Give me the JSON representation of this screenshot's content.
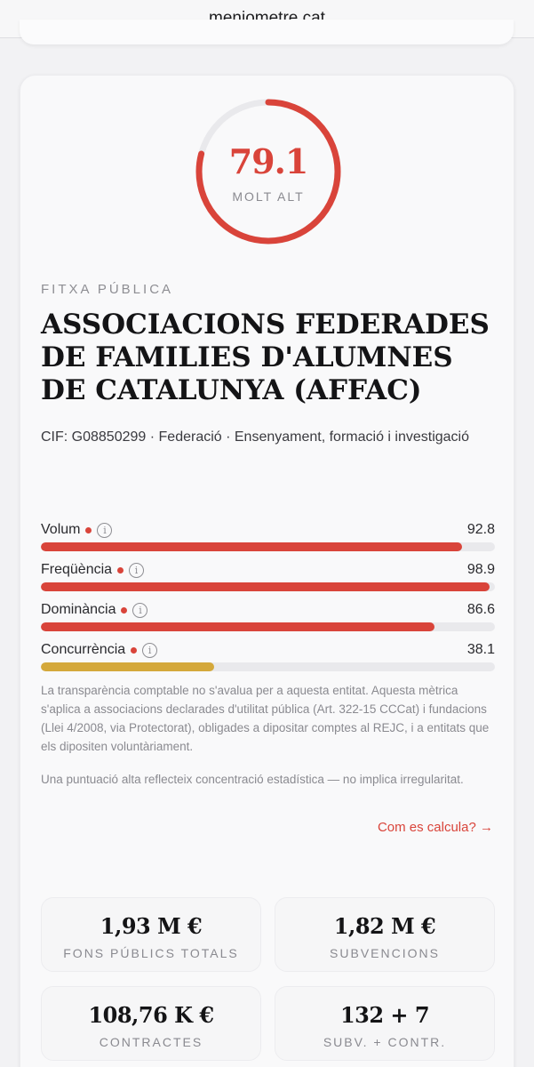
{
  "browser": {
    "url": "menjometre.cat"
  },
  "score": {
    "value": "79.1",
    "level": "MOLT ALT",
    "fraction": 0.791,
    "color": "#d9443a"
  },
  "entity": {
    "eyebrow": "FITXA PÚBLICA",
    "name": "ASSOCIACIONS FEDERADES DE FAMILIES D'ALUMNES DE CATALUNYA (AFFAC)",
    "meta": "CIF: G08850299 · Federació · Ensenyament, formació i investigació"
  },
  "metrics": [
    {
      "label": "Volum",
      "value": "92.8",
      "fraction": 0.928,
      "color": "#d9443a",
      "info_icon": "info-icon"
    },
    {
      "label": "Freqüència",
      "value": "98.9",
      "fraction": 0.989,
      "color": "#d9443a",
      "info_icon": "info-icon"
    },
    {
      "label": "Dominància",
      "value": "86.6",
      "fraction": 0.866,
      "color": "#d9443a",
      "info_icon": "info-icon"
    },
    {
      "label": "Concurrència",
      "value": "38.1",
      "fraction": 0.381,
      "color": "#d4a83a",
      "info_icon": "info-icon"
    }
  ],
  "notes": {
    "transparency": "La transparència comptable no s'avalua per a aquesta entitat. Aquesta mètrica s'aplica a associacions declarades d'utilitat pública (Art. 322-15 CCCat) i fundacions (Llei 4/2008, via Protectorat), obligades a dipositar comptes al REJC, i a entitats que els dipositen voluntàriament.",
    "disclaimer": "Una puntuació alta reflecteix concentració estadística — no implica irregularitat.",
    "how_link": "Com es calcula? →"
  },
  "stats": [
    {
      "value": "1,93 M €",
      "caption": "FONS PÚBLICS TOTALS"
    },
    {
      "value": "1,82 M €",
      "caption": "SUBVENCIONS"
    },
    {
      "value": "108,76 K €",
      "caption": "CONTRACTES"
    },
    {
      "value": "132 + 7",
      "caption": "SUBV. + CONTR."
    }
  ]
}
